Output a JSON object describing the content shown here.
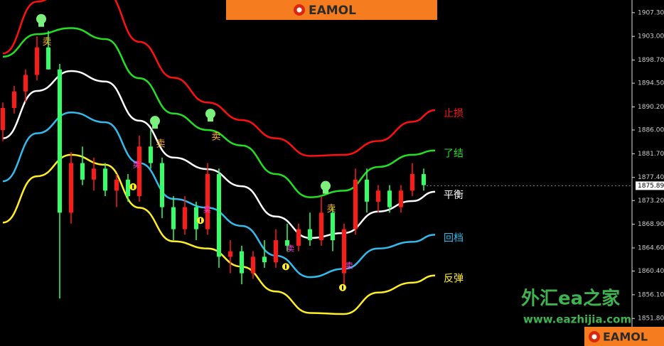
{
  "brand": "EAMOL",
  "watermark": {
    "title": "外汇ea之家",
    "url": "www.eazhijia.com"
  },
  "chart_data": {
    "type": "candlestick",
    "xlim": [
      0,
      111
    ],
    "ylim": [
      1846.8,
      1909.6
    ],
    "yticks": [
      {
        "value": 1907.3,
        "label": "1907.30"
      },
      {
        "value": 1903.0,
        "label": "1903.00"
      },
      {
        "value": 1898.7,
        "label": "1898.70"
      },
      {
        "value": 1894.5,
        "label": "1894.50"
      },
      {
        "value": 1890.2,
        "label": "1890.20"
      },
      {
        "value": 1886.0,
        "label": "1886.00"
      },
      {
        "value": 1881.7,
        "label": "1881.70"
      },
      {
        "value": 1877.4,
        "label": "1877.40"
      },
      {
        "value": 1873.2,
        "label": "1873.20"
      },
      {
        "value": 1868.9,
        "label": "1868.90"
      },
      {
        "value": 1864.6,
        "label": "1864.60"
      },
      {
        "value": 1860.4,
        "label": "1860.40"
      },
      {
        "value": 1856.1,
        "label": "1856.10"
      },
      {
        "value": 1851.8,
        "label": "1851.80"
      }
    ],
    "current_price": 1875.89,
    "candles": {
      "up_color": "#ff1a1a",
      "down_color": "#33ff66",
      "x": [
        0,
        2,
        4,
        6,
        8,
        10,
        12,
        14,
        16,
        18,
        20,
        22,
        24,
        26,
        28,
        30,
        32,
        34,
        36,
        38,
        40,
        42,
        44,
        46,
        48,
        50,
        52,
        54,
        56,
        58,
        60,
        62,
        64,
        66,
        68,
        70,
        72,
        74
      ],
      "open": [
        1886,
        1890,
        1893,
        1896,
        1901,
        1897,
        1871,
        1880,
        1877,
        1879,
        1875,
        1877,
        1874,
        1883,
        1880,
        1872,
        1868,
        1872,
        1868,
        1878,
        1863,
        1864,
        1860,
        1863,
        1862,
        1866,
        1865,
        1868,
        1866,
        1871,
        1860,
        1868,
        1877,
        1873,
        1875,
        1872,
        1875,
        1878
      ],
      "high": [
        1891,
        1894,
        1897,
        1903,
        1904,
        1898,
        1882,
        1883,
        1881,
        1880,
        1878,
        1878,
        1885,
        1886,
        1881,
        1874,
        1874,
        1873,
        1880,
        1879,
        1866,
        1865,
        1864,
        1866,
        1868,
        1869,
        1869,
        1871,
        1874,
        1872,
        1869,
        1879,
        1879,
        1876,
        1876,
        1876,
        1880,
        1879
      ],
      "low": [
        1884,
        1889,
        1891,
        1895,
        1897,
        1855.4,
        1869,
        1876,
        1875,
        1874,
        1872,
        1873,
        1873,
        1879,
        1870,
        1866,
        1867,
        1866,
        1867,
        1861,
        1860,
        1858,
        1859,
        1861,
        1861,
        1864,
        1864,
        1865,
        1865,
        1864,
        1857.5,
        1867,
        1871,
        1871,
        1871,
        1871,
        1874,
        1875
      ],
      "close": [
        1890,
        1893,
        1896,
        1901,
        1897,
        1871,
        1880,
        1877,
        1879,
        1875,
        1877,
        1874,
        1883,
        1880,
        1872,
        1868,
        1872,
        1868,
        1878,
        1863,
        1864,
        1860,
        1863,
        1862,
        1866,
        1865,
        1868,
        1866,
        1871,
        1866,
        1868,
        1877,
        1873,
        1875,
        1872,
        1875,
        1878,
        1876
      ]
    },
    "band_x": [
      0,
      6,
      12,
      18,
      24,
      30,
      36,
      42,
      48,
      54,
      60,
      66,
      72,
      76
    ],
    "series": [
      {
        "name": "止损",
        "color": "#ff1010",
        "values": [
          1899.9,
          1909.3,
          1912.5,
          1911.0,
          1902.0,
          1895.5,
          1891.0,
          1887.8,
          1884.5,
          1881.3,
          1881.5,
          1884.0,
          1887.5,
          1889.6
        ]
      },
      {
        "name": "了结",
        "color": "#22e022",
        "values": [
          1899.3,
          1903.4,
          1904.5,
          1902.5,
          1895.4,
          1889.0,
          1886.0,
          1883.2,
          1878.0,
          1873.8,
          1875.0,
          1879.3,
          1881.5,
          1882.3
        ]
      },
      {
        "name": "平衡",
        "color": "#ffffff",
        "values": [
          1884.5,
          1893.1,
          1896.7,
          1894.8,
          1887.7,
          1881.0,
          1878.9,
          1875.8,
          1870.3,
          1866.4,
          1867.3,
          1871.2,
          1873.1,
          1874.8
        ]
      },
      {
        "name": "回档",
        "color": "#33bbee",
        "values": [
          1876.7,
          1885.4,
          1889.2,
          1887.4,
          1880.0,
          1873.5,
          1871.9,
          1868.6,
          1863.2,
          1859.3,
          1860.8,
          1864.5,
          1865.7,
          1867.0
        ]
      },
      {
        "name": "反弹",
        "color": "#ffee22",
        "values": [
          1869.2,
          1877.6,
          1881.5,
          1879.7,
          1871.9,
          1865.8,
          1864.5,
          1861.2,
          1856.7,
          1852.8,
          1852.6,
          1856.5,
          1858.3,
          1859.6
        ]
      }
    ],
    "sell_signals": {
      "color": "#ffb020",
      "labels": [
        "卖",
        "卖",
        "卖",
        "卖"
      ],
      "x": [
        7.75,
        27.75,
        37.5,
        57.75
      ],
      "y": [
        1901.9,
        1883.4,
        1884.7,
        1871.6
      ]
    },
    "pink_signals": {
      "color": "#ff44dd",
      "labels": [
        "卖",
        "卖",
        "卖",
        "卖"
      ],
      "x": [
        23.5,
        35.9,
        50.6,
        60.9
      ],
      "y": [
        1879.6,
        1871.5,
        1864.4,
        1861.3
      ]
    },
    "bag_signals": {
      "color": "#ffee22",
      "x": [
        22.9,
        34.75,
        49.75,
        59.75
      ],
      "y": [
        1875.7,
        1869.6,
        1861.2,
        1857.4
      ]
    }
  }
}
